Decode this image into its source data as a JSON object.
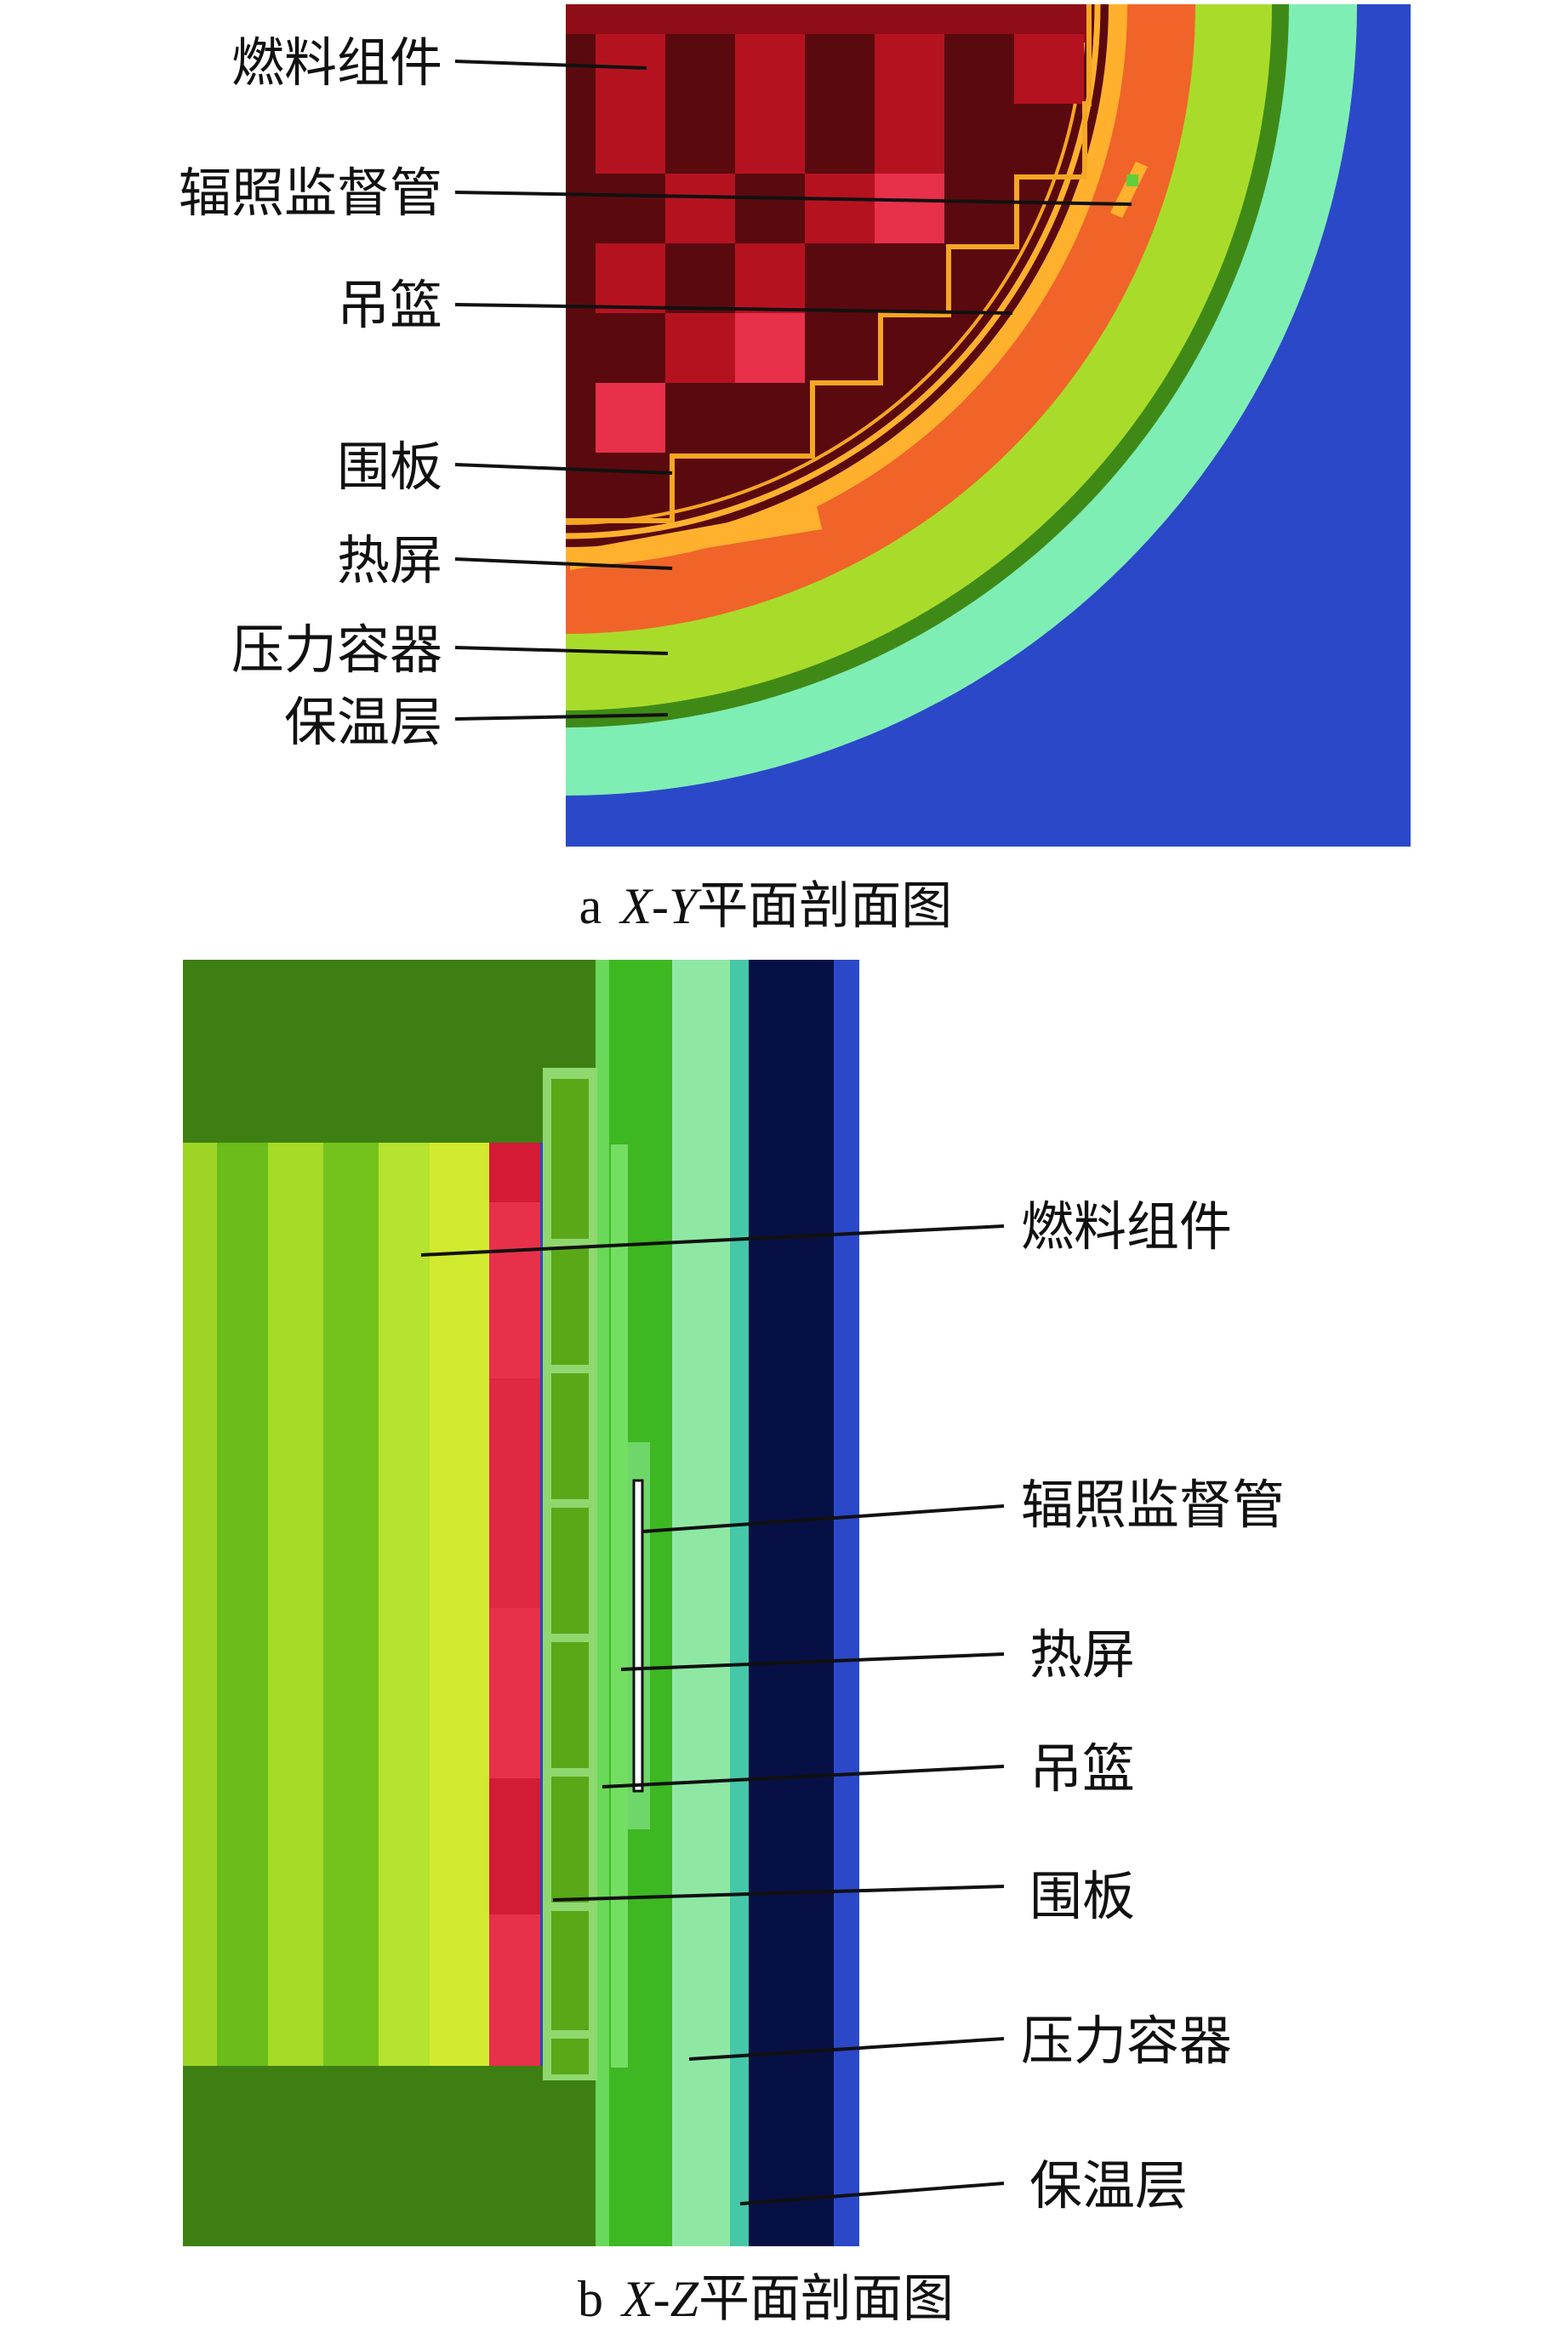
{
  "panel_a": {
    "labels": [
      "燃料组件",
      "辐照监督管",
      "吊篮",
      "围板",
      "热屏",
      "压力容器",
      "保温层"
    ],
    "caption": {
      "letter": "a",
      "axes": "X-Y",
      "text": "平面剖面图"
    }
  },
  "panel_b": {
    "labels": [
      "燃料组件",
      "辐照监督管",
      "热屏",
      "吊篮",
      "围板",
      "压力容器",
      "保温层"
    ],
    "caption": {
      "letter": "b",
      "axes": "X-Z",
      "text": "平面剖面图"
    }
  },
  "colors": {
    "fuel_dark": "#5a0a0e",
    "fuel_mid": "#b51220",
    "fuel_hot": "#e8304a",
    "baffle": "#f5a623",
    "heat_shield": "#ffb12e",
    "water_gap": "#f0642a",
    "vessel": "#a9dc2a",
    "vessel_liner": "#3f8a17",
    "insulation": "#7feeb4",
    "outer": "#2b48c9",
    "reflector_dark": "#3e7f14",
    "navy": "#071045"
  }
}
